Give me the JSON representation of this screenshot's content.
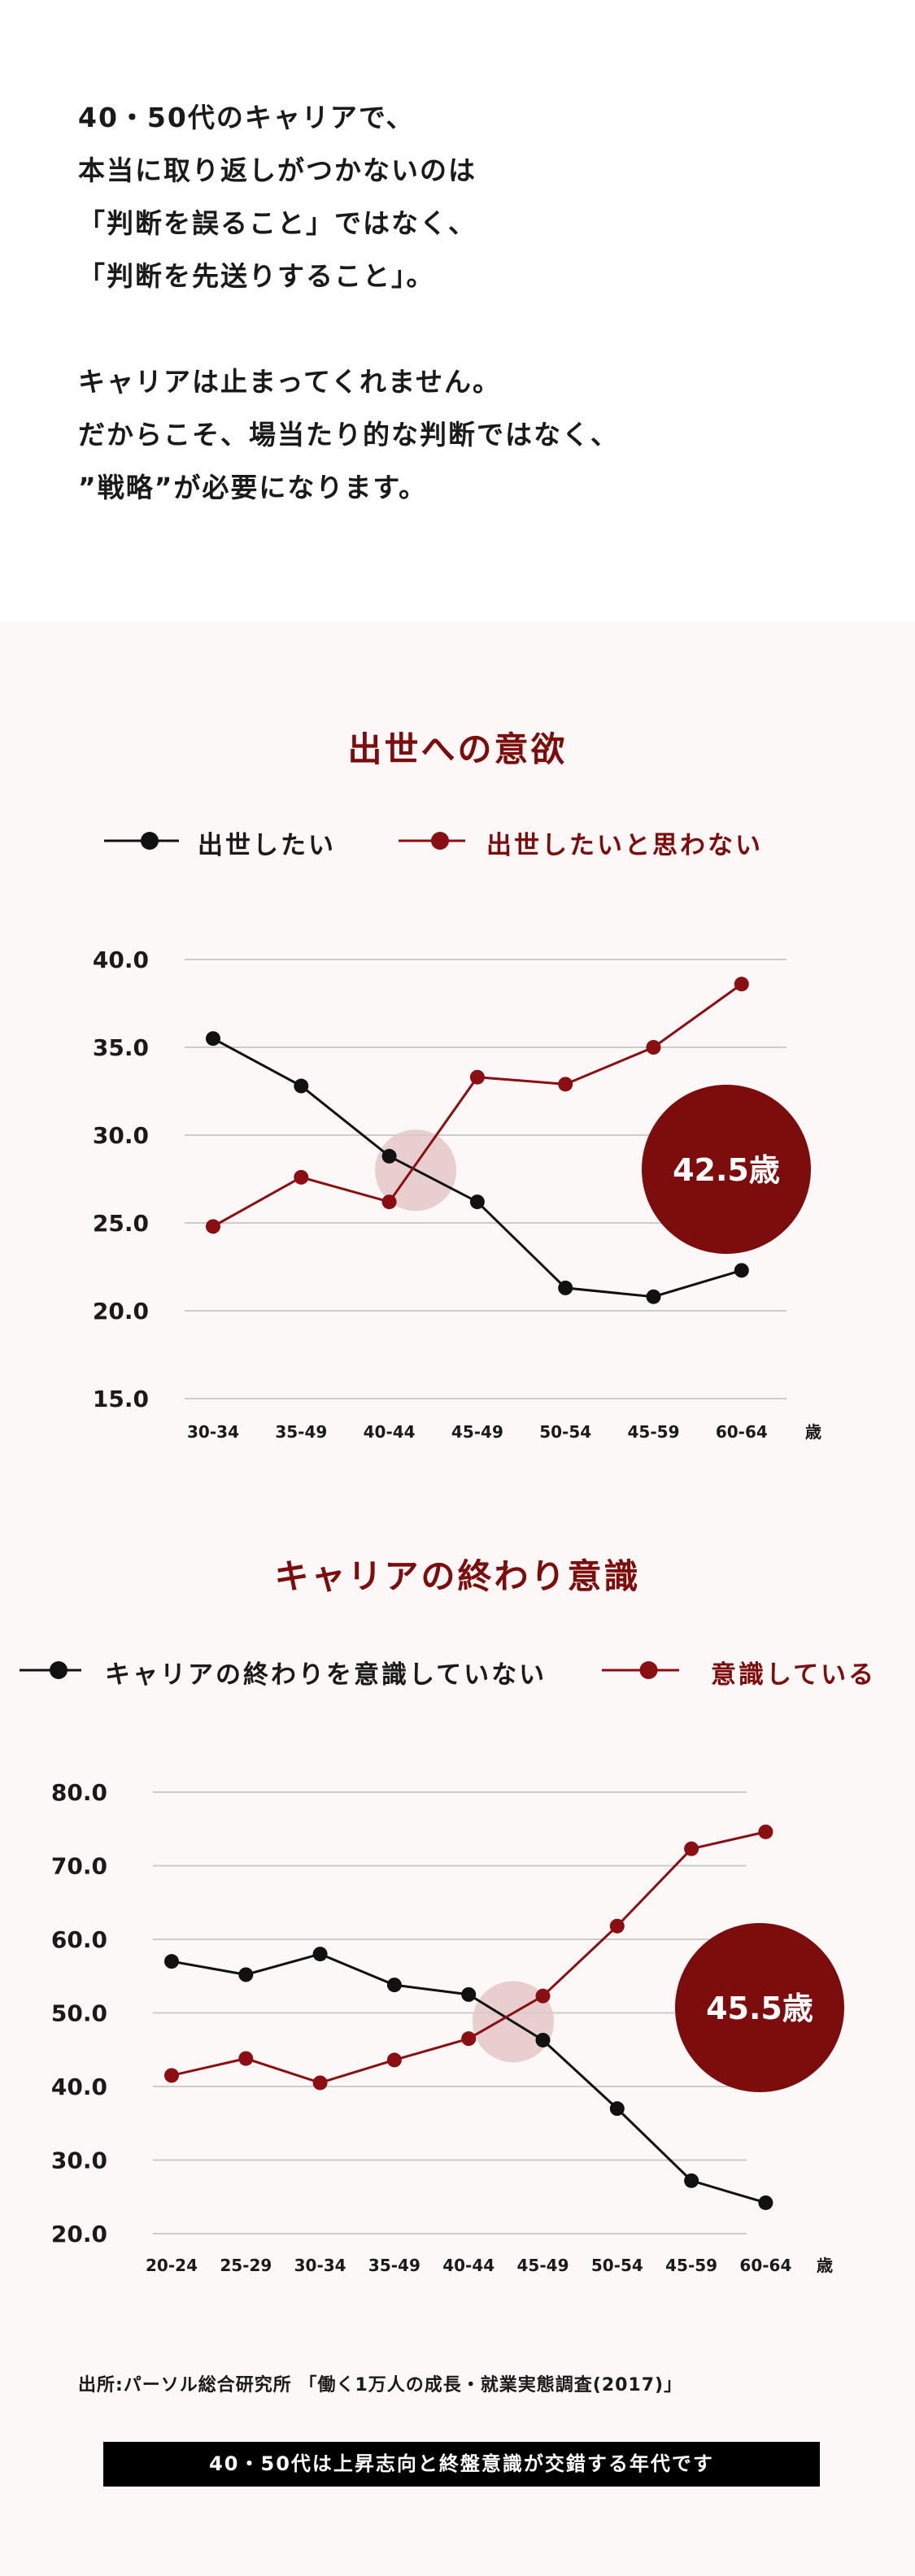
{
  "intro": {
    "lines": [
      "40・50代のキャリアで、",
      "本当に取り返しがつかないのは",
      "「判断を誤ること」ではなく、",
      "「判断を先送りすること」。",
      "",
      "キャリアは止まってくれません。",
      " だからこそ、場当たり的な判断ではなく、",
      "”戦略”が必要になります。"
    ]
  },
  "colors": {
    "black_series": "#111111",
    "red_series": "#8b0e12",
    "accent": "#7d0c0c",
    "highlight": "#e4c7c7",
    "grid": "#cccccc"
  },
  "chart_data": [
    {
      "type": "line",
      "title": "出世への意欲",
      "categories": [
        "30-34",
        "35-49",
        "40-44",
        "45-49",
        "50-54",
        "45-59",
        "60-64"
      ],
      "x_unit": "歳",
      "yticks": [
        "40.0",
        "35.0",
        "30.0",
        "25.0",
        "20.0",
        "15.0"
      ],
      "ylim": [
        15,
        40
      ],
      "grid": true,
      "legend_position": "top",
      "series": [
        {
          "name": "出世したい",
          "color": "#111111",
          "values": [
            35.5,
            32.8,
            28.8,
            26.2,
            21.3,
            20.8,
            22.3
          ]
        },
        {
          "name": "出世したいと思わない",
          "color": "#8b0e12",
          "values": [
            24.8,
            27.6,
            26.2,
            33.3,
            32.9,
            35.0,
            38.6
          ]
        }
      ],
      "highlight_x": 2.3,
      "highlight_y": 28.0,
      "badge": "42.5歳"
    },
    {
      "type": "line",
      "title": "キャリアの終わり意識",
      "categories": [
        "20-24",
        "25-29",
        "30-34",
        "35-49",
        "40-44",
        "45-49",
        "50-54",
        "45-59",
        "60-64"
      ],
      "x_unit": "歳",
      "yticks": [
        "80.0",
        "70.0",
        "60.0",
        "50.0",
        "40.0",
        "30.0",
        "20.0"
      ],
      "ylim": [
        20,
        80
      ],
      "grid": true,
      "legend_position": "top",
      "series": [
        {
          "name": "キャリアの終わりを意識していない",
          "color": "#111111",
          "values": [
            57.0,
            55.2,
            58.0,
            53.8,
            52.5,
            46.3,
            37.0,
            27.2,
            24.2
          ]
        },
        {
          "name": "意識している",
          "color": "#8b0e12",
          "values": [
            41.5,
            43.8,
            40.5,
            43.6,
            46.5,
            52.3,
            61.8,
            72.3,
            74.6
          ]
        }
      ],
      "highlight_x": 4.6,
      "highlight_y": 48.8,
      "badge": "45.5歳"
    }
  ],
  "source": "出所:パーソル総合研究所 「働く1万人の成長・就業実態調査(2017)」",
  "banner": "40・50代は上昇志向と終盤意識が交錯する年代です"
}
